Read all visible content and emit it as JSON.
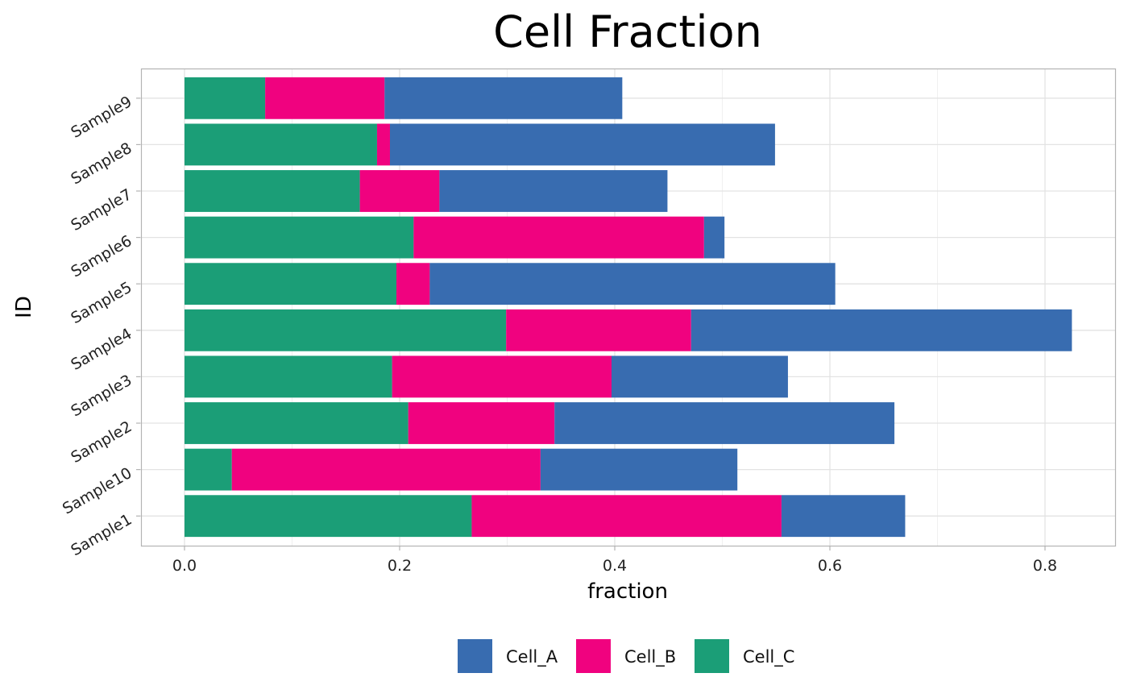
{
  "chart_data": {
    "type": "bar",
    "orientation": "horizontal",
    "stacked": true,
    "title": "Cell Fraction",
    "xlabel": "fraction",
    "ylabel": "ID",
    "xlim": [
      -0.0375,
      0.87
    ],
    "xticks": [
      0.0,
      0.2,
      0.4,
      0.6,
      0.8
    ],
    "xtick_labels": [
      "0.0",
      "0.2",
      "0.4",
      "0.6",
      "0.8"
    ],
    "grid": true,
    "legend_position": "bottom",
    "categories": [
      "Sample1",
      "Sample10",
      "Sample2",
      "Sample3",
      "Sample4",
      "Sample5",
      "Sample6",
      "Sample7",
      "Sample8",
      "Sample9"
    ],
    "stack_order": [
      "Cell_C",
      "Cell_B",
      "Cell_A"
    ],
    "series": [
      {
        "name": "Cell_A",
        "color": "#386CB0",
        "values": [
          0.115,
          0.183,
          0.316,
          0.164,
          0.354,
          0.377,
          0.019,
          0.212,
          0.358,
          0.221
        ]
      },
      {
        "name": "Cell_B",
        "color": "#F0027F",
        "values": [
          0.288,
          0.287,
          0.136,
          0.204,
          0.172,
          0.031,
          0.27,
          0.074,
          0.012,
          0.111
        ]
      },
      {
        "name": "Cell_C",
        "color": "#1B9E77",
        "values": [
          0.267,
          0.044,
          0.208,
          0.193,
          0.299,
          0.197,
          0.213,
          0.163,
          0.179,
          0.075
        ]
      }
    ]
  }
}
